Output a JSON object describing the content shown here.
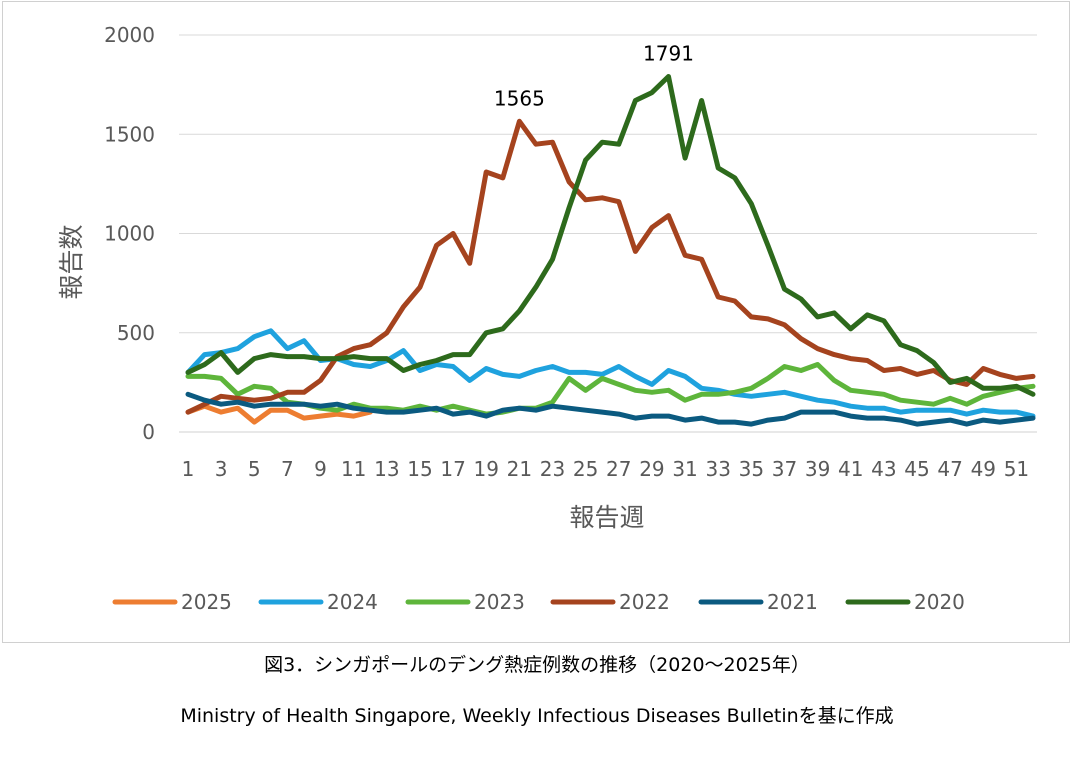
{
  "caption": "図3．シンガポールのデング熱症例数の推移（2020～2025年）",
  "source": "Ministry of Health Singapore, Weekly Infectious Diseases Bulletinを基に作成",
  "chart_data": {
    "type": "line",
    "xlabel": "報告週",
    "ylabel": "報告数",
    "ylim": [
      0,
      2000
    ],
    "yticks": [
      0,
      500,
      1000,
      1500,
      2000
    ],
    "xticks": [
      1,
      3,
      5,
      7,
      9,
      11,
      13,
      15,
      17,
      19,
      21,
      23,
      25,
      27,
      29,
      31,
      33,
      35,
      37,
      39,
      41,
      43,
      45,
      47,
      49,
      51
    ],
    "xlim": [
      1,
      52
    ],
    "grid": true,
    "legend_position": "bottom",
    "annotations": [
      {
        "series": "2022",
        "x": 21,
        "text": "1565"
      },
      {
        "series": "2020",
        "x": 30,
        "text": "1791"
      }
    ],
    "series": [
      {
        "name": "2025",
        "color": "#ED7D31",
        "values": [
          100,
          130,
          100,
          120,
          50,
          110,
          110,
          70,
          80,
          90,
          80,
          100
        ]
      },
      {
        "name": "2024",
        "color": "#1FA2DE",
        "values": [
          300,
          390,
          400,
          420,
          480,
          510,
          420,
          460,
          360,
          370,
          340,
          330,
          360,
          410,
          310,
          340,
          330,
          260,
          320,
          290,
          280,
          310,
          330,
          300,
          300,
          290,
          330,
          280,
          240,
          310,
          280,
          220,
          210,
          190,
          180,
          190,
          200,
          180,
          160,
          150,
          130,
          120,
          120,
          100,
          110,
          110,
          110,
          90,
          110,
          100,
          100,
          80
        ]
      },
      {
        "name": "2023",
        "color": "#5EB53B",
        "values": [
          280,
          280,
          270,
          190,
          230,
          220,
          150,
          140,
          120,
          110,
          140,
          120,
          120,
          110,
          130,
          110,
          130,
          110,
          90,
          100,
          120,
          120,
          150,
          270,
          210,
          270,
          240,
          210,
          200,
          210,
          160,
          190,
          190,
          200,
          220,
          270,
          330,
          310,
          340,
          260,
          210,
          200,
          190,
          160,
          150,
          140,
          170,
          140,
          180,
          200,
          220,
          230
        ]
      },
      {
        "name": "2022",
        "color": "#A5431E",
        "values": [
          100,
          140,
          180,
          170,
          160,
          170,
          200,
          200,
          260,
          380,
          420,
          440,
          500,
          630,
          730,
          940,
          1000,
          850,
          1310,
          1280,
          1565,
          1450,
          1460,
          1260,
          1170,
          1180,
          1160,
          910,
          1030,
          1090,
          890,
          870,
          680,
          660,
          580,
          570,
          540,
          470,
          420,
          390,
          370,
          360,
          310,
          320,
          290,
          310,
          260,
          240,
          320,
          290,
          270,
          280
        ]
      },
      {
        "name": "2021",
        "color": "#0B5A80",
        "values": [
          190,
          160,
          140,
          150,
          130,
          140,
          140,
          140,
          130,
          140,
          120,
          110,
          100,
          100,
          110,
          120,
          90,
          100,
          80,
          110,
          120,
          110,
          130,
          120,
          110,
          100,
          90,
          70,
          80,
          80,
          60,
          70,
          50,
          50,
          40,
          60,
          70,
          100,
          100,
          100,
          80,
          70,
          70,
          60,
          40,
          50,
          60,
          40,
          60,
          50,
          60,
          70
        ]
      },
      {
        "name": "2020",
        "color": "#2D6A1C",
        "values": [
          300,
          340,
          400,
          300,
          370,
          390,
          380,
          380,
          370,
          370,
          380,
          370,
          370,
          310,
          340,
          360,
          390,
          390,
          500,
          520,
          610,
          730,
          870,
          1130,
          1370,
          1460,
          1450,
          1670,
          1710,
          1791,
          1380,
          1670,
          1330,
          1280,
          1150,
          940,
          720,
          670,
          580,
          600,
          520,
          590,
          560,
          440,
          410,
          350,
          250,
          270,
          220,
          220,
          230,
          190
        ]
      }
    ]
  }
}
